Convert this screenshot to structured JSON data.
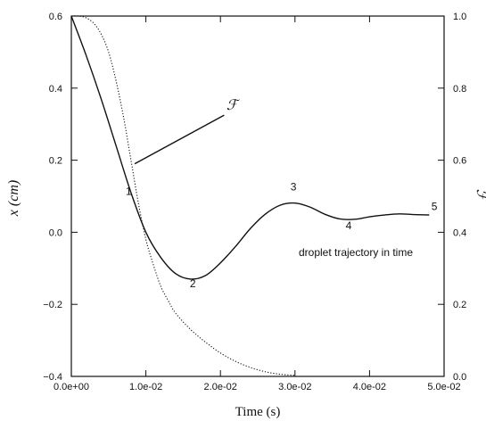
{
  "chart_data": {
    "type": "line",
    "xlabel": "Time (s)",
    "ylabel_left": "x (cm)",
    "ylabel_right": "ℱ",
    "xlim": [
      0,
      0.05
    ],
    "ylim_left": [
      -0.4,
      0.6
    ],
    "ylim_right": [
      0.0,
      1.0
    ],
    "x_ticks": [
      "0.0e+00",
      "1.0e-02",
      "2.0e-02",
      "3.0e-02",
      "4.0e-02",
      "5.0e-02"
    ],
    "y_ticks_left": [
      "0.6",
      "0.4",
      "0.2",
      "0.0",
      "−0.2",
      "−0.4"
    ],
    "y_ticks_right": [
      "1.0",
      "0.8",
      "0.6",
      "0.4",
      "0.2",
      "0.0"
    ],
    "grid": false,
    "series": [
      {
        "name": "",
        "axis": "left",
        "style": "solid",
        "x": [
          0.0,
          0.002,
          0.004,
          0.006,
          0.008,
          0.01,
          0.012,
          0.014,
          0.016,
          0.018,
          0.02,
          0.022,
          0.024,
          0.026,
          0.028,
          0.03,
          0.032,
          0.034,
          0.036,
          0.038,
          0.04,
          0.042,
          0.044,
          0.046,
          0.048
        ],
        "y": [
          0.6,
          0.49,
          0.37,
          0.24,
          0.11,
          0.0,
          -0.07,
          -0.115,
          -0.13,
          -0.12,
          -0.085,
          -0.04,
          0.01,
          0.05,
          0.075,
          0.081,
          0.07,
          0.05,
          0.037,
          0.036,
          0.043,
          0.048,
          0.051,
          0.049,
          0.048
        ]
      },
      {
        "name": "",
        "axis": "right",
        "style": "dotted",
        "x": [
          0.0,
          0.001,
          0.002,
          0.003,
          0.004,
          0.005,
          0.006,
          0.007,
          0.008,
          0.009,
          0.01,
          0.011,
          0.012,
          0.013,
          0.014,
          0.016,
          0.018,
          0.02,
          0.022,
          0.024,
          0.026,
          0.028,
          0.03
        ],
        "y": [
          1.0,
          1.0,
          0.995,
          0.98,
          0.95,
          0.9,
          0.82,
          0.72,
          0.6,
          0.48,
          0.38,
          0.31,
          0.25,
          0.21,
          0.175,
          0.13,
          0.095,
          0.065,
          0.042,
          0.025,
          0.013,
          0.006,
          0.003
        ]
      }
    ],
    "point_labels": [
      {
        "text": "1",
        "x": 0.0077,
        "y": 0.104
      },
      {
        "text": "2",
        "x": 0.0163,
        "y": -0.152
      },
      {
        "text": "3",
        "x": 0.0298,
        "y": 0.116
      },
      {
        "text": "4",
        "x": 0.0372,
        "y": 0.008
      },
      {
        "text": "5",
        "x": 0.0487,
        "y": 0.062
      }
    ],
    "annotations": [
      {
        "text": "droplet trajectory in time",
        "x": 0.0305,
        "y": -0.066
      },
      {
        "text": "ℱ",
        "x": 0.0208,
        "y": 0.34
      }
    ],
    "pointer_line": {
      "from": [
        0.0085,
        0.19
      ],
      "to": [
        0.0205,
        0.325
      ]
    }
  }
}
